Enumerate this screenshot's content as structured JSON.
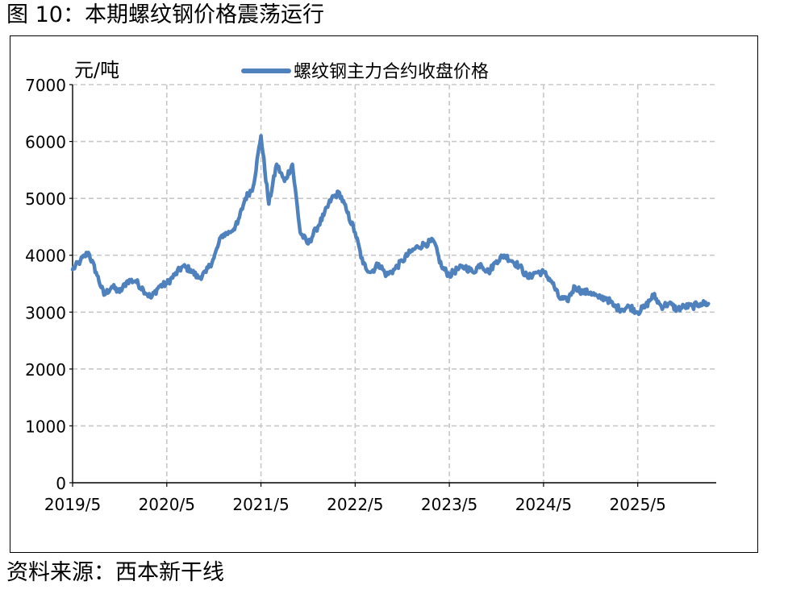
{
  "figure": {
    "title": "图 10：本期螺纹钢价格震荡运行",
    "source": "资料来源：西本新干线"
  },
  "chart_data": {
    "type": "line",
    "ylabel": "元/吨",
    "xlabel": "",
    "ylim": [
      0,
      7000
    ],
    "yticks": [
      0,
      1000,
      2000,
      3000,
      4000,
      5000,
      6000,
      7000
    ],
    "xlim": [
      "2019-05",
      "2026-03"
    ],
    "xticks": [
      "2019/5",
      "2020/5",
      "2021/5",
      "2022/5",
      "2023/5",
      "2024/5",
      "2025/5"
    ],
    "grid": true,
    "legend_position": "top-center",
    "series_color": "#4f81bd",
    "series": [
      {
        "name": "螺纹钢主力合约收盘价格",
        "x": [
          "2019-05",
          "2019-06",
          "2019-07",
          "2019-08",
          "2019-09",
          "2019-10",
          "2019-11",
          "2019-12",
          "2020-01",
          "2020-02",
          "2020-03",
          "2020-04",
          "2020-05",
          "2020-06",
          "2020-07",
          "2020-08",
          "2020-09",
          "2020-10",
          "2020-11",
          "2020-12",
          "2021-01",
          "2021-02",
          "2021-03",
          "2021-04",
          "2021-05",
          "2021-06",
          "2021-07",
          "2021-08",
          "2021-09",
          "2021-10",
          "2021-11",
          "2021-12",
          "2022-01",
          "2022-02",
          "2022-03",
          "2022-04",
          "2022-05",
          "2022-06",
          "2022-07",
          "2022-08",
          "2022-09",
          "2022-10",
          "2022-11",
          "2022-12",
          "2023-01",
          "2023-02",
          "2023-03",
          "2023-04",
          "2023-05",
          "2023-06",
          "2023-07",
          "2023-08",
          "2023-09",
          "2023-10",
          "2023-11",
          "2023-12",
          "2024-01",
          "2024-02",
          "2024-03",
          "2024-04",
          "2024-05",
          "2024-06",
          "2024-07",
          "2024-08",
          "2024-09",
          "2024-10",
          "2024-11",
          "2024-12",
          "2025-01",
          "2025-02",
          "2025-03",
          "2025-04",
          "2025-05",
          "2025-06",
          "2025-07",
          "2025-08",
          "2025-09",
          "2025-10",
          "2025-11",
          "2025-12",
          "2026-01",
          "2026-02"
        ],
        "values": [
          3750,
          3900,
          4050,
          3700,
          3300,
          3450,
          3350,
          3550,
          3550,
          3400,
          3250,
          3450,
          3500,
          3650,
          3800,
          3750,
          3600,
          3700,
          3950,
          4350,
          4400,
          4550,
          5000,
          5200,
          6100,
          4900,
          5600,
          5300,
          5600,
          4400,
          4200,
          4450,
          4700,
          5000,
          5100,
          4750,
          4400,
          3850,
          3700,
          3850,
          3650,
          3750,
          3900,
          4050,
          4150,
          4200,
          4250,
          3800,
          3650,
          3750,
          3800,
          3700,
          3850,
          3700,
          3900,
          4000,
          3900,
          3800,
          3600,
          3700,
          3700,
          3550,
          3250,
          3200,
          3450,
          3350,
          3350,
          3250,
          3250,
          3100,
          3050,
          3100,
          3000,
          3100,
          3300,
          3100,
          3150,
          3050,
          3100,
          3100,
          3150,
          3150
        ]
      }
    ]
  }
}
